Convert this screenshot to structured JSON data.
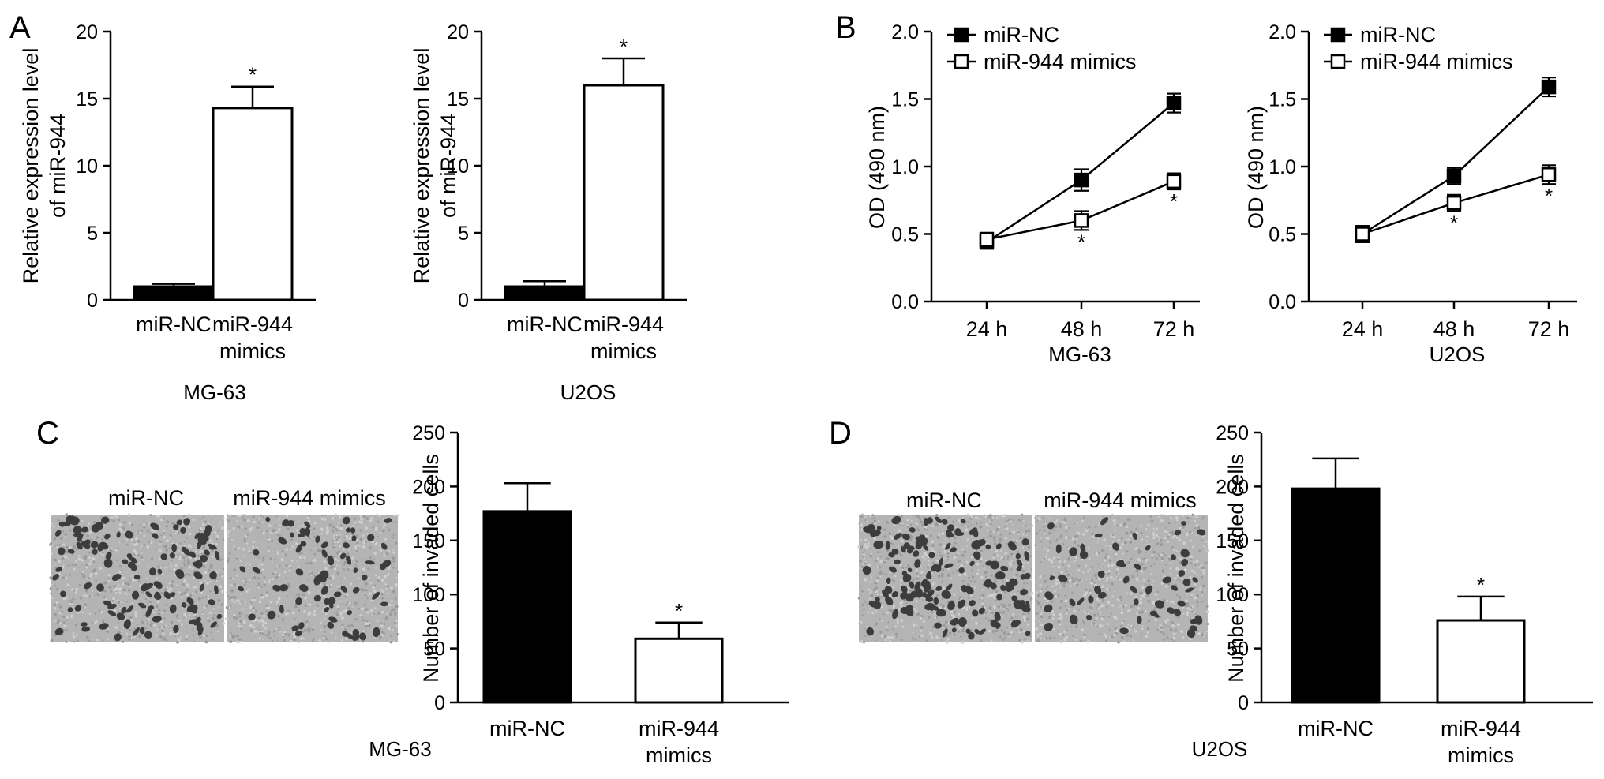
{
  "panel_labels": {
    "a": "A",
    "b": "B",
    "c": "C",
    "d": "D"
  },
  "colors": {
    "black": "#000000",
    "white": "#ffffff",
    "micro_bg": "#b4b4b4",
    "micro_cell": "#3c3c3c"
  },
  "micrographs": {
    "c": {
      "left_label": "miR-NC",
      "right_label": "miR-944 mimics"
    },
    "d": {
      "left_label": "miR-NC",
      "right_label": "miR-944 mimics"
    }
  },
  "chart_data": [
    {
      "id": "a1",
      "type": "bar",
      "categories": [
        [
          "miR-NC"
        ],
        [
          "miR-944",
          "mimics"
        ]
      ],
      "values": [
        1.0,
        14.3
      ],
      "errors": [
        0.2,
        1.6
      ],
      "fill": [
        "#000000",
        "#ffffff"
      ],
      "ylabel": [
        "Relative expression level",
        "of miR-944"
      ],
      "ylim": [
        0,
        20
      ],
      "yticks": [
        "0",
        "5",
        "10",
        "15",
        "20"
      ],
      "significance": [
        "",
        "*"
      ],
      "caption": "MG-63"
    },
    {
      "id": "a2",
      "type": "bar",
      "categories": [
        [
          "miR-NC"
        ],
        [
          "miR-944",
          "mimics"
        ]
      ],
      "values": [
        1.0,
        16.0
      ],
      "errors": [
        0.4,
        2.0
      ],
      "fill": [
        "#000000",
        "#ffffff"
      ],
      "ylabel": [
        "Relative expression level",
        "of miR-944"
      ],
      "ylim": [
        0,
        20
      ],
      "yticks": [
        "0",
        "5",
        "10",
        "15",
        "20"
      ],
      "significance": [
        "",
        "*"
      ],
      "caption": "U2OS"
    },
    {
      "id": "b1",
      "type": "line",
      "x": [
        "24 h",
        "48 h",
        "72 h"
      ],
      "series": [
        {
          "name": "miR-NC",
          "values": [
            0.44,
            0.9,
            1.47
          ],
          "errors": [
            0.05,
            0.08,
            0.07
          ],
          "marker": "filled-square",
          "significance": [
            "",
            "",
            ""
          ]
        },
        {
          "name": "miR-944 mimics",
          "values": [
            0.46,
            0.6,
            0.89
          ],
          "errors": [
            0.05,
            0.07,
            0.06
          ],
          "marker": "open-square",
          "significance": [
            "",
            "*",
            "*"
          ]
        }
      ],
      "ylabel": [
        "OD (490 nm)"
      ],
      "ylim": [
        0,
        2.0
      ],
      "yticks": [
        "0.0",
        "0.5",
        "1.0",
        "1.5",
        "2.0"
      ],
      "legend_placement": "top-left",
      "caption": "MG-63"
    },
    {
      "id": "b2",
      "type": "line",
      "x": [
        "24 h",
        "48 h",
        "72 h"
      ],
      "series": [
        {
          "name": "miR-NC",
          "values": [
            0.5,
            0.93,
            1.59
          ],
          "errors": [
            0.06,
            0.06,
            0.07
          ],
          "marker": "filled-square",
          "significance": [
            "",
            "",
            ""
          ]
        },
        {
          "name": "miR-944 mimics",
          "values": [
            0.5,
            0.73,
            0.94
          ],
          "errors": [
            0.06,
            0.06,
            0.07
          ],
          "marker": "open-square",
          "significance": [
            "",
            "*",
            "*"
          ]
        }
      ],
      "ylabel": [
        "OD (490 nm)"
      ],
      "ylim": [
        0,
        2.0
      ],
      "yticks": [
        "0.0",
        "0.5",
        "1.0",
        "1.5",
        "2.0"
      ],
      "legend_placement": "top-left",
      "caption": "U2OS"
    },
    {
      "id": "c",
      "type": "bar",
      "categories": [
        [
          "miR-NC"
        ],
        [
          "miR-944",
          "mimics"
        ]
      ],
      "values": [
        177,
        59
      ],
      "errors": [
        26,
        15
      ],
      "fill": [
        "#000000",
        "#ffffff"
      ],
      "ylabel": [
        "Number of invaded cells"
      ],
      "ylim": [
        0,
        250
      ],
      "yticks": [
        "0",
        "50",
        "100",
        "150",
        "200",
        "250"
      ],
      "significance": [
        "",
        "*"
      ],
      "caption": "MG-63"
    },
    {
      "id": "d",
      "type": "bar",
      "categories": [
        [
          "miR-NC"
        ],
        [
          "miR-944",
          "mimics"
        ]
      ],
      "values": [
        198,
        76
      ],
      "errors": [
        28,
        22
      ],
      "fill": [
        "#000000",
        "#ffffff"
      ],
      "ylabel": [
        "Number of invaded cells"
      ],
      "ylim": [
        0,
        250
      ],
      "yticks": [
        "0",
        "50",
        "100",
        "150",
        "200",
        "250"
      ],
      "significance": [
        "",
        "*"
      ],
      "caption": "U2OS"
    }
  ]
}
